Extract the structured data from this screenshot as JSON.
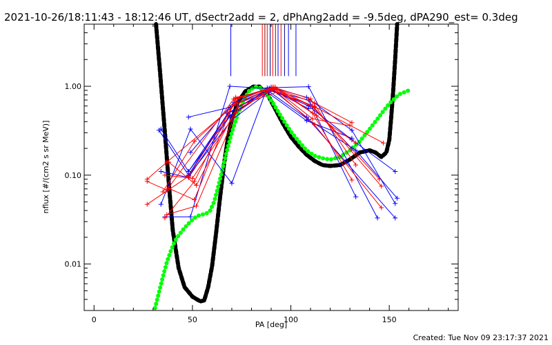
{
  "chart_data": {
    "type": "scatter",
    "title": "2021-10-26/18:11:43 - 18:12:46 UT, dSectr2add = 2, dPhAng2add = -9.5deg, dPA290_est=  0.3deg",
    "xlabel": "PA [deg]",
    "ylabel": "nflux [#/(cm2 s sr MeV)]",
    "xlim": [
      -5,
      185
    ],
    "ylim": [
      0.003,
      5.0
    ],
    "yscale": "log",
    "xticks": [
      0,
      50,
      100,
      150
    ],
    "xtick_labels": [
      "0",
      "50",
      "100",
      "150"
    ],
    "yticks": [
      0.01,
      0.1,
      1.0
    ],
    "ytick_labels": [
      "0.01",
      "0.10",
      "1.00"
    ],
    "grid": false,
    "footer": "Created: Tue Nov 09 23:17:37 2021",
    "colors": {
      "blue": "#0000ff",
      "red": "#ff0000",
      "black": "#000000",
      "green": "#00ff00",
      "navy": "#000080",
      "darkred": "#800000"
    },
    "vertical_markers": [
      {
        "x": 69.5,
        "color": "#0000ff"
      },
      {
        "x": 85.5,
        "color": "#ff0000"
      },
      {
        "x": 86.8,
        "color": "#800000"
      },
      {
        "x": 88.0,
        "color": "#ff0000"
      },
      {
        "x": 89.5,
        "color": "#000080"
      },
      {
        "x": 90.8,
        "color": "#ff0000"
      },
      {
        "x": 92.2,
        "color": "#800000"
      },
      {
        "x": 93.5,
        "color": "#0000ff"
      },
      {
        "x": 95.0,
        "color": "#ff0000"
      },
      {
        "x": 96.8,
        "color": "#000080"
      },
      {
        "x": 98.8,
        "color": "#0000ff"
      },
      {
        "x": 102.6,
        "color": "#0000ff"
      }
    ],
    "series": [
      {
        "color": "#0000ff",
        "x": [
          34,
          48,
          69,
          88,
          109,
          133
        ],
        "y": [
          0.11,
          0.094,
          0.46,
          0.92,
          0.7,
          0.057
        ]
      },
      {
        "color": "#0000ff",
        "x": [
          33,
          48,
          68,
          89,
          110,
          131
        ],
        "y": [
          0.32,
          0.1,
          0.5,
          0.9,
          0.62,
          0.2
        ]
      },
      {
        "color": "#0000ff",
        "x": [
          34,
          49,
          70,
          88,
          109,
          144
        ],
        "y": [
          0.047,
          0.33,
          0.081,
          0.96,
          0.99,
          0.033
        ]
      },
      {
        "color": "#0000ff",
        "x": [
          36,
          49,
          69,
          90,
          108,
          153
        ],
        "y": [
          0.034,
          0.034,
          1.0,
          0.94,
          0.45,
          0.033
        ]
      },
      {
        "color": "#0000ff",
        "x": [
          48,
          69,
          90,
          109,
          131,
          153
        ],
        "y": [
          0.11,
          0.47,
          0.92,
          0.6,
          0.25,
          0.11
        ]
      },
      {
        "color": "#0000ff",
        "x": [
          48,
          70,
          89,
          109,
          133,
          154
        ],
        "y": [
          0.098,
          0.42,
          0.87,
          0.42,
          0.19,
          0.055
        ]
      },
      {
        "color": "#0000ff",
        "x": [
          49,
          71,
          90,
          108,
          131,
          153
        ],
        "y": [
          0.18,
          0.66,
          0.98,
          0.75,
          0.32,
          0.048
        ]
      },
      {
        "color": "#0000ff",
        "x": [
          48,
          69,
          87,
          108,
          131
        ],
        "y": [
          0.45,
          0.58,
          0.89,
          0.41,
          0.26
        ]
      },
      {
        "color": "#0000ff",
        "x": [
          34,
          48,
          68,
          89,
          109
        ],
        "y": [
          0.33,
          0.11,
          0.49,
          0.95,
          0.56
        ]
      },
      {
        "color": "#ff0000",
        "x": [
          27,
          48,
          73,
          91,
          112,
          131
        ],
        "y": [
          0.047,
          0.097,
          0.72,
          0.96,
          0.65,
          0.39
        ]
      },
      {
        "color": "#ff0000",
        "x": [
          27,
          37,
          71,
          92,
          113,
          133
        ],
        "y": [
          0.085,
          0.068,
          0.72,
          0.98,
          0.47,
          0.23
        ]
      },
      {
        "color": "#ff0000",
        "x": [
          27,
          37,
          72,
          92,
          111,
          130
        ],
        "y": [
          0.09,
          0.14,
          0.63,
          0.92,
          0.43,
          0.36
        ]
      },
      {
        "color": "#ff0000",
        "x": [
          36,
          51,
          72,
          91,
          110,
          133
        ],
        "y": [
          0.033,
          0.085,
          0.73,
          0.98,
          0.72,
          0.13
        ]
      },
      {
        "color": "#ff0000",
        "x": [
          36,
          50,
          72,
          91,
          111,
          131
        ],
        "y": [
          0.1,
          0.092,
          0.5,
          0.98,
          0.5,
          0.088
        ]
      },
      {
        "color": "#ff0000",
        "x": [
          35,
          51,
          72,
          91,
          111,
          145
        ],
        "y": [
          0.065,
          0.24,
          0.65,
          0.96,
          0.6,
          0.09
        ]
      },
      {
        "color": "#ff0000",
        "x": [
          37,
          52,
          73,
          92,
          112,
          146
        ],
        "y": [
          0.036,
          0.045,
          0.55,
          0.95,
          0.57,
          0.075
        ]
      },
      {
        "color": "#ff0000",
        "x": [
          38,
          52,
          73,
          93,
          112,
          147
        ],
        "y": [
          0.14,
          0.077,
          0.6,
          0.86,
          0.59,
          0.23
        ]
      },
      {
        "color": "#ff0000",
        "x": [
          38,
          51,
          72,
          91,
          112,
          146
        ],
        "y": [
          0.071,
          0.053,
          0.75,
          0.93,
          0.37,
          0.043
        ]
      }
    ],
    "curves": [
      {
        "color": "#000000",
        "style": "thick-dashed",
        "x": [
          31.5,
          33.5,
          36,
          38,
          40,
          43,
          46,
          50,
          54,
          56,
          58,
          60,
          62,
          64,
          66,
          68,
          70,
          73,
          77,
          81,
          84,
          88,
          92,
          96,
          100,
          104,
          108,
          112,
          116,
          120,
          125,
          130,
          135,
          140,
          143,
          146,
          148.5,
          150,
          151,
          152,
          153,
          154
        ],
        "y": [
          5.0,
          1.5,
          0.3,
          0.08,
          0.024,
          0.009,
          0.0055,
          0.0043,
          0.0038,
          0.0039,
          0.0055,
          0.0095,
          0.022,
          0.055,
          0.13,
          0.26,
          0.42,
          0.66,
          0.88,
          0.99,
          0.99,
          0.82,
          0.56,
          0.38,
          0.27,
          0.21,
          0.17,
          0.145,
          0.13,
          0.127,
          0.13,
          0.15,
          0.18,
          0.19,
          0.18,
          0.16,
          0.18,
          0.25,
          0.45,
          0.9,
          2.0,
          5.0
        ]
      },
      {
        "color": "#00ff00",
        "style": "thick-dotted",
        "x": [
          31,
          33,
          35,
          37,
          39,
          41,
          43,
          45,
          47,
          49,
          51,
          53,
          55,
          57,
          59,
          61,
          63,
          65,
          67,
          70,
          73,
          76,
          79,
          82,
          85,
          88,
          91,
          94,
          97,
          100,
          104,
          108,
          112,
          116,
          120,
          125,
          130,
          135,
          140,
          145,
          150,
          155,
          160
        ],
        "y": [
          0.0032,
          0.0048,
          0.0072,
          0.0105,
          0.014,
          0.018,
          0.021,
          0.024,
          0.027,
          0.03,
          0.033,
          0.035,
          0.036,
          0.037,
          0.04,
          0.05,
          0.073,
          0.11,
          0.17,
          0.3,
          0.48,
          0.7,
          0.9,
          0.99,
          0.95,
          0.8,
          0.64,
          0.5,
          0.39,
          0.31,
          0.24,
          0.19,
          0.165,
          0.155,
          0.15,
          0.16,
          0.19,
          0.24,
          0.33,
          0.46,
          0.64,
          0.81,
          0.9
        ]
      }
    ]
  }
}
